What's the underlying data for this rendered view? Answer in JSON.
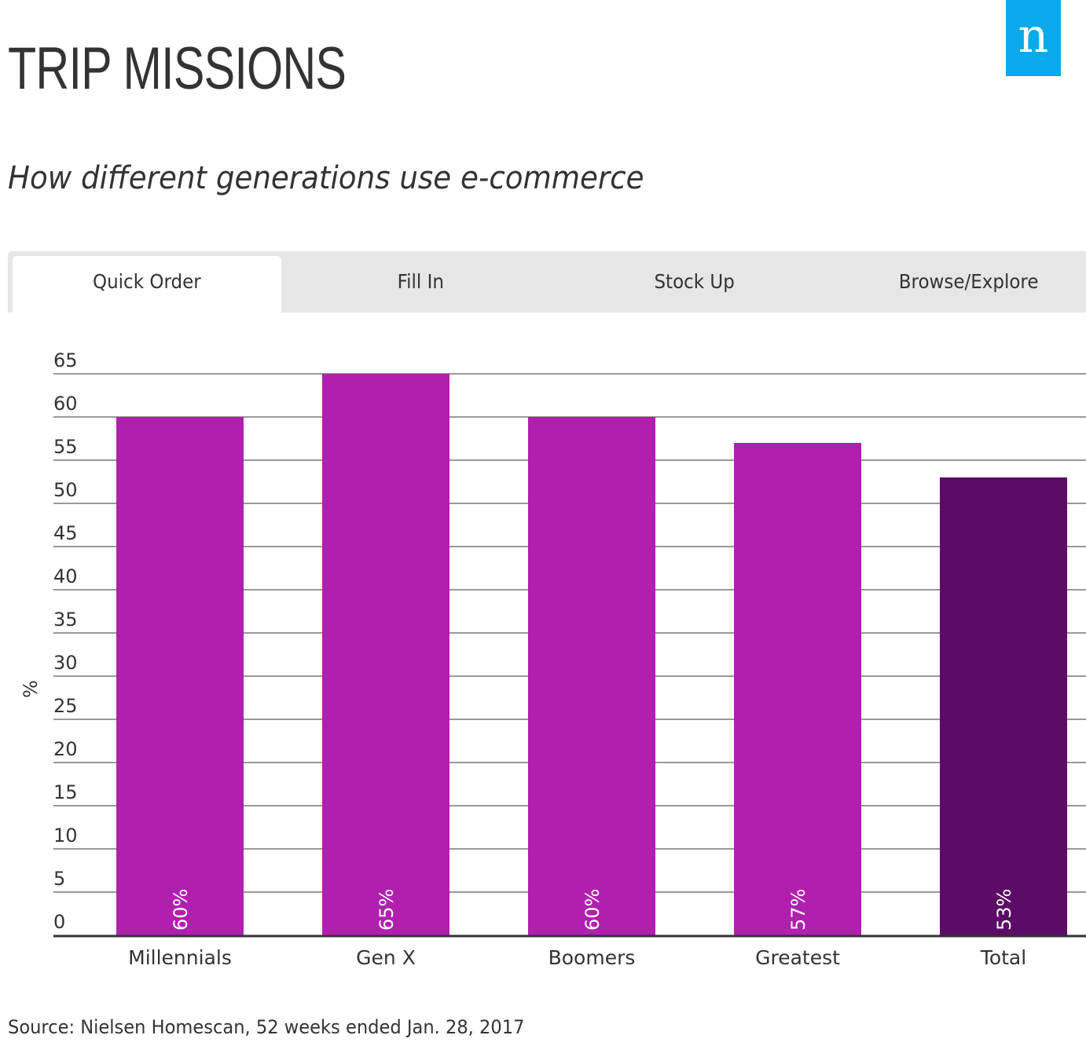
{
  "header": {
    "title": "TRIP MISSIONS",
    "subtitle": "How different generations use e-commerce",
    "logo_letter": "n",
    "logo_color": "#09a9ec"
  },
  "tabs": [
    {
      "label": "Quick Order",
      "active": true
    },
    {
      "label": "Fill In",
      "active": false
    },
    {
      "label": "Stock Up",
      "active": false
    },
    {
      "label": "Browse/Explore",
      "active": false
    }
  ],
  "source": "Source: Nielsen Homescan, 52 weeks ended Jan. 28, 2017",
  "chart_data": {
    "type": "bar",
    "title": "TRIP MISSIONS",
    "subtitle": "How different generations use e-commerce",
    "xlabel": "",
    "ylabel": "%",
    "ylim": [
      0,
      65
    ],
    "yticks": [
      0,
      5,
      10,
      15,
      20,
      25,
      30,
      35,
      40,
      45,
      50,
      55,
      60,
      65
    ],
    "grid": true,
    "categories": [
      "Millennials",
      "Gen X",
      "Boomers",
      "Greatest",
      "Total"
    ],
    "values": [
      60,
      65,
      60,
      57,
      53
    ],
    "data_labels": [
      "60%",
      "65%",
      "60%",
      "57%",
      "53%"
    ],
    "colors": [
      "#b11faf",
      "#b11faf",
      "#b11faf",
      "#b11faf",
      "#5c0b67"
    ],
    "gridline_color": "#999999",
    "axis_color": "#333333"
  }
}
